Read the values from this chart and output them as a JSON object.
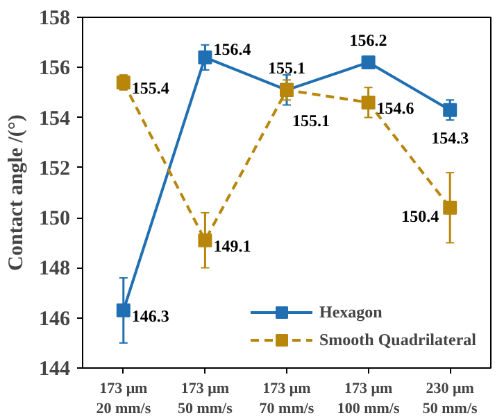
{
  "chart_data": {
    "type": "line",
    "ylabel": "Contact angle /(°)",
    "categories": [
      "173 μm\n20 mm/s",
      "173 μm\n50 mm/s",
      "173 μm\n70 mm/s",
      "173 μm\n100 mm/s",
      "230 μm\n50 mm/s"
    ],
    "series": [
      {
        "name": "Hexagon",
        "color": "#1f6fb2",
        "values": [
          146.3,
          156.4,
          155.1,
          156.2,
          154.3
        ],
        "errors": [
          1.3,
          0.5,
          0.6,
          0.1,
          0.4
        ],
        "line_style": "solid"
      },
      {
        "name": "Smooth Quadrilateral",
        "color": "#b8860b",
        "values": [
          155.4,
          149.1,
          155.1,
          154.6,
          150.4
        ],
        "errors": [
          0.3,
          1.1,
          0.4,
          0.6,
          1.4
        ],
        "line_style": "dashed"
      }
    ],
    "ylim": [
      144,
      158
    ],
    "yticks": [
      144,
      146,
      148,
      150,
      152,
      154,
      156,
      158
    ],
    "marker": "square",
    "data_labels": true,
    "grid": false,
    "legend": "bottom right"
  }
}
